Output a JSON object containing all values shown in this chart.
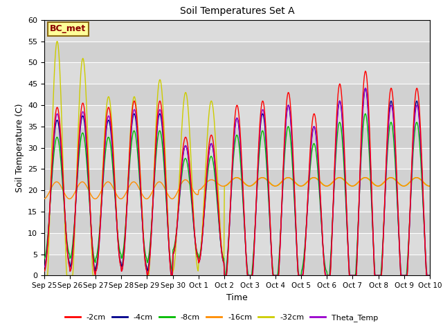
{
  "title": "Soil Temperatures Set A",
  "xlabel": "Time",
  "ylabel": "Soil Temperature (C)",
  "ylim": [
    0,
    60
  ],
  "yticks": [
    0,
    5,
    10,
    15,
    20,
    25,
    30,
    35,
    40,
    45,
    50,
    55,
    60
  ],
  "xlabels": [
    "Sep 25",
    "Sep 26",
    "Sep 27",
    "Sep 28",
    "Sep 29",
    "Sep 30",
    "Oct 1",
    "Oct 2",
    "Oct 3",
    "Oct 4",
    "Oct 5",
    "Oct 6",
    "Oct 7",
    "Oct 8",
    "Oct 9",
    "Oct 10"
  ],
  "annotation_text": "BC_met",
  "annotation_color": "#8B0000",
  "annotation_bg": "#FFFF99",
  "line_colors": {
    "-2cm": "#FF0000",
    "-4cm": "#00008B",
    "-8cm": "#00BB00",
    "-16cm": "#FF8C00",
    "-32cm": "#CCCC00",
    "Theta_Temp": "#9900CC"
  },
  "legend_labels": [
    "-2cm",
    "-4cm",
    "-8cm",
    "-16cm",
    "-32cm",
    "Theta_Temp"
  ],
  "bg_color": "#DCDCDC",
  "grid_color": "#FFFFFF",
  "figure_bg": "#FFFFFF"
}
